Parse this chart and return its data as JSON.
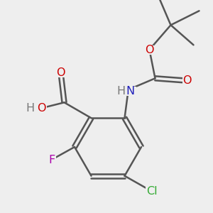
{
  "bg_color": "#eeeeee",
  "bond_color": "#555555",
  "bond_width": 1.8,
  "atom_colors": {
    "O": "#cc0000",
    "N": "#2222bb",
    "F": "#aa00aa",
    "Cl": "#33aa33",
    "H": "#777777",
    "C": "#555555"
  },
  "font_size": 11.5
}
